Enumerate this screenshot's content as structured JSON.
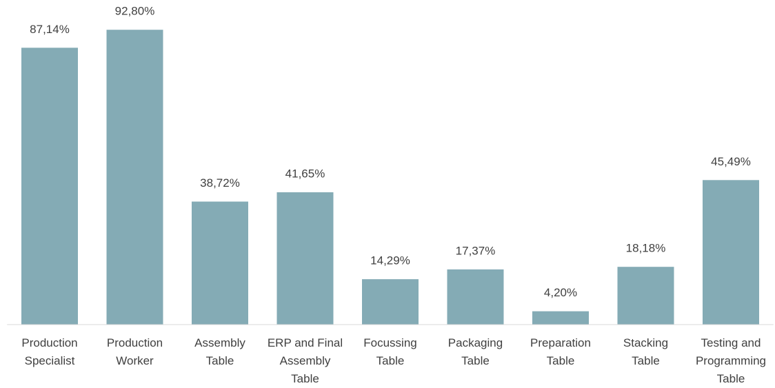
{
  "chart_data": {
    "type": "bar",
    "categories": [
      "Production\nSpecialist",
      "Production\nWorker",
      "Assembly\nTable",
      "ERP and Final\nAssembly\nTable",
      "Focussing\nTable",
      "Packaging\nTable",
      "Preparation\nTable",
      "Stacking\nTable",
      "Testing and\nProgramming\nTable"
    ],
    "values": [
      87.14,
      92.8,
      38.72,
      41.65,
      14.29,
      17.37,
      4.2,
      18.18,
      45.49
    ],
    "value_labels": [
      "87,14%",
      "92,80%",
      "38,72%",
      "41,65%",
      "14,29%",
      "17,37%",
      "4,20%",
      "18,18%",
      "45,49%"
    ],
    "color": "#84abb5",
    "ylim": [
      0,
      100
    ]
  }
}
